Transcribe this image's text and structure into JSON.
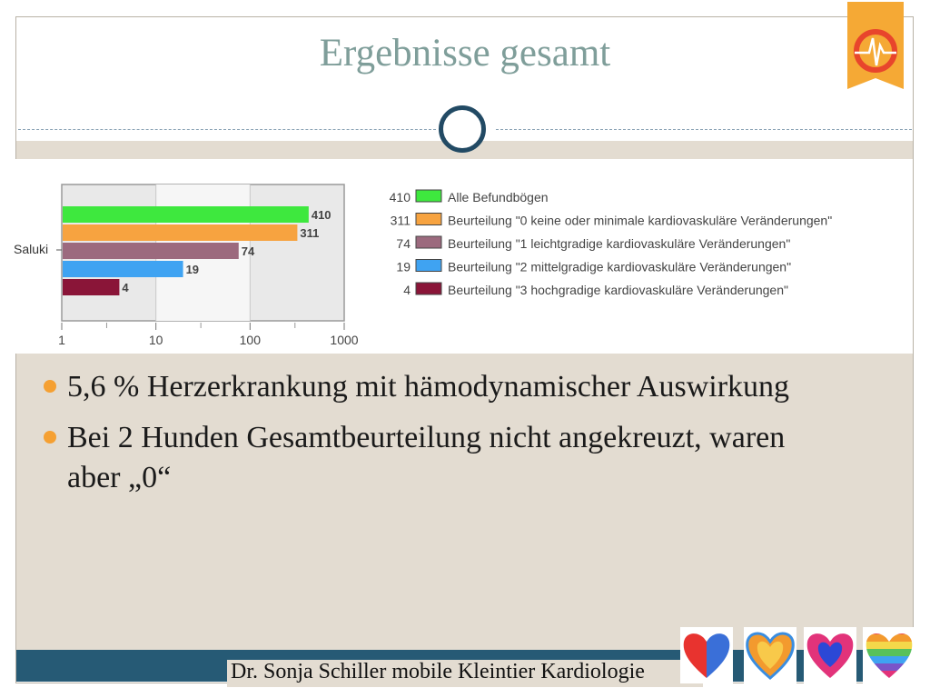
{
  "slide": {
    "title": "Ergebnisse gesamt",
    "footer": "Dr. Sonja Schiller mobile Kleintier Kardiologie",
    "bullets": [
      "5,6 % Herzerkrankung mit hämodynamischer Auswirkung",
      "Bei 2 Hunden Gesamtbeurteilung nicht angekreuzt, waren aber „0“"
    ]
  },
  "icons": {
    "logo": "heart-ecg-logo-icon",
    "hearts": [
      "red-blue-heart-icon",
      "orange-heart-icon",
      "pink-blue-heart-icon",
      "striped-heart-icon"
    ]
  },
  "colors": {
    "title": "#7f9e9a",
    "accent": "#f5a032",
    "footer_bar": "#265a75",
    "content_bg": "#e3dcd1"
  },
  "chart_data": {
    "type": "bar",
    "orientation": "horizontal",
    "x_scale": "log",
    "xlim": [
      1,
      1000
    ],
    "x_ticks": [
      "1",
      "10",
      "100",
      "1000"
    ],
    "category": "Saluki",
    "legend_position": "right",
    "series": [
      {
        "name": "Alle Befundbögen",
        "value": 410,
        "color": "#3ee83e"
      },
      {
        "name": "Beurteilung \"0 keine oder minimale kardiovaskuläre Veränderungen\"",
        "value": 311,
        "color": "#f7a340"
      },
      {
        "name": "Beurteilung \"1 leichtgradige kardiovaskuläre Veränderungen\"",
        "value": 74,
        "color": "#9c6a7e"
      },
      {
        "name": "Beurteilung \"2 mittelgradige kardiovaskuläre Veränderungen\"",
        "value": 19,
        "color": "#3fa3f2"
      },
      {
        "name": "Beurteilung \"3 hochgradige kardiovaskuläre Veränderungen\"",
        "value": 4,
        "color": "#8a1538"
      }
    ]
  }
}
